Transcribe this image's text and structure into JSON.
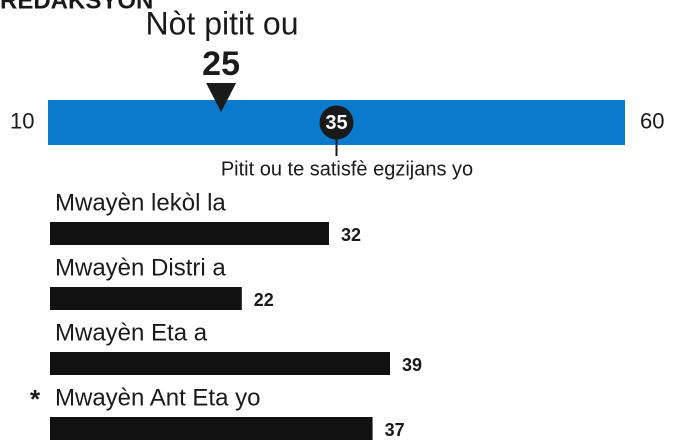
{
  "chart_data": {
    "type": "score-report",
    "title": "REDAKSYON",
    "score_label": "Nòt pitit ou",
    "score": 25,
    "xlim": [
      10,
      60
    ],
    "threshold": 35,
    "threshold_label": "Pitit ou te satisfè egzijans yo",
    "scale_color": "#0a7acc",
    "categories": [
      "Mwayèn lekòl la",
      "Mwayèn Distri a",
      "Mwayèn Eta a",
      "Mwayèn Ant Eta yo"
    ],
    "category_marks": [
      null,
      null,
      null,
      "*"
    ],
    "values": [
      32,
      22,
      39,
      37
    ],
    "color": "#111111"
  }
}
